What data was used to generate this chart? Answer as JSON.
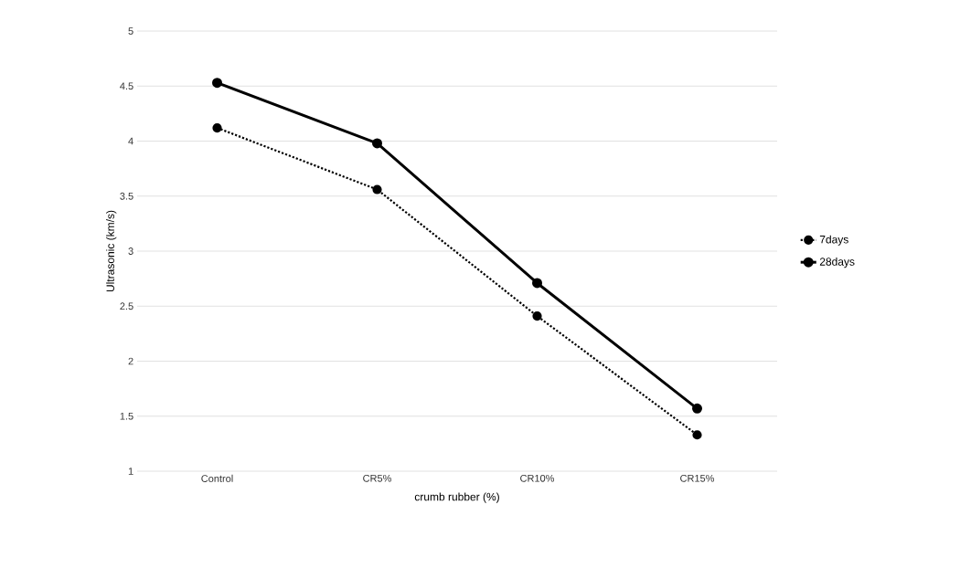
{
  "chart_data": {
    "type": "line",
    "xlabel": "crumb rubber (%)",
    "ylabel": "Ultrasonic (km/s)",
    "categories": [
      "Control",
      "CR5%",
      "CR10%",
      "CR15%"
    ],
    "series": [
      {
        "name": "7days",
        "color": "#000000",
        "line_style": "dotted",
        "values": [
          4.12,
          3.56,
          2.41,
          1.33
        ]
      },
      {
        "name": "28days",
        "color": "#000000",
        "line_style": "solid",
        "values": [
          4.53,
          3.98,
          2.71,
          1.57
        ]
      }
    ],
    "ylim": [
      1,
      5
    ],
    "yticks": [
      1,
      1.5,
      2,
      2.5,
      3,
      3.5,
      4,
      4.5,
      5
    ],
    "grid": "y",
    "legend": "right",
    "marker": "circle"
  }
}
